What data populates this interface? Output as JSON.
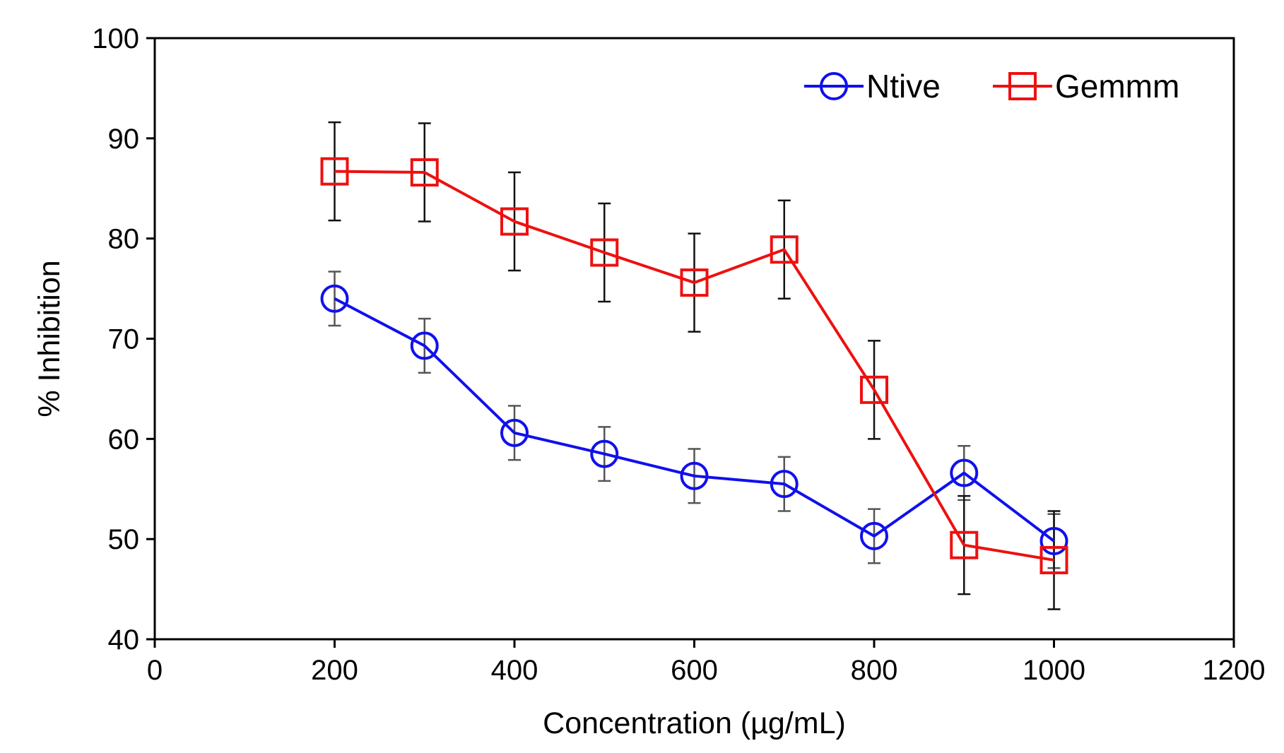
{
  "chart_data": {
    "type": "line",
    "title": "",
    "xlabel": "Concentration (µg/mL)",
    "ylabel": "% Inhibition",
    "xlim": [
      0,
      1200
    ],
    "ylim": [
      40,
      100
    ],
    "xticks": [
      0,
      200,
      400,
      600,
      800,
      1000,
      1200
    ],
    "yticks": [
      40,
      50,
      60,
      70,
      80,
      90,
      100
    ],
    "grid": false,
    "legend_position": "top-right",
    "x": [
      200,
      300,
      400,
      500,
      600,
      700,
      800,
      900,
      1000
    ],
    "series": [
      {
        "name": "Ntive",
        "color": "#1010ee",
        "marker": "circle",
        "values": [
          74.0,
          69.3,
          60.6,
          58.5,
          56.3,
          55.5,
          50.3,
          56.6,
          49.8
        ],
        "errors": [
          2.7,
          2.7,
          2.7,
          2.7,
          2.7,
          2.7,
          2.7,
          2.7,
          2.7
        ]
      },
      {
        "name": "Gemmm",
        "color": "#ee1010",
        "marker": "square",
        "values": [
          86.7,
          86.6,
          81.7,
          78.6,
          75.6,
          78.9,
          64.9,
          49.4,
          47.9
        ],
        "errors": [
          4.9,
          4.9,
          4.9,
          4.9,
          4.9,
          4.9,
          4.9,
          4.9,
          4.9
        ]
      }
    ]
  }
}
